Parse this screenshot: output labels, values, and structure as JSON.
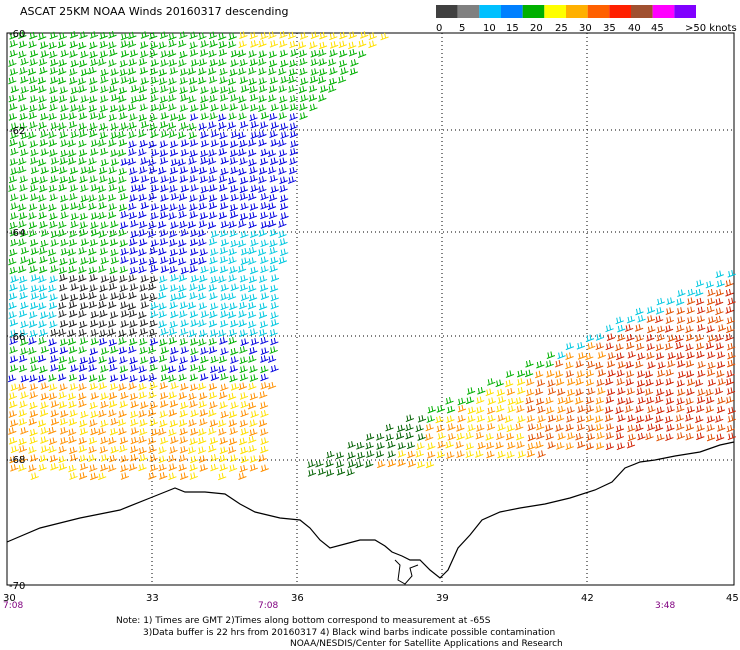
{
  "title": "ASCAT 25KM NOAA Winds 20160317 descending",
  "legend": {
    "labels": [
      "0",
      "5",
      "10",
      "15",
      "20",
      "25",
      "30",
      "35",
      "40",
      "45",
      ">50 knots"
    ],
    "colors": [
      "#404040",
      "#808080",
      "#00c0ff",
      "#0080ff",
      "#00b000",
      "#ffff00",
      "#ffb000",
      "#ff6000",
      "#ff2000",
      "#a05030",
      "#ff00ff",
      "#8000ff"
    ]
  },
  "axes": {
    "lat_labels": [
      "-60",
      "-62",
      "-64",
      "-66",
      "-68",
      "-70"
    ],
    "lon_labels": [
      "30",
      "33",
      "36",
      "39",
      "42",
      "45"
    ]
  },
  "times": [
    "7:08",
    "7:08",
    "3:48"
  ],
  "notes": [
    "Note: 1) Times are GMT 2)Times along bottom correspond to measurement at -65S",
    "3)Data buffer is 22 hrs from 20160317 4) Black wind barbs indicate possible contamination",
    "NOAA/NESDIS/Center for Satellite Applications and Research"
  ]
}
